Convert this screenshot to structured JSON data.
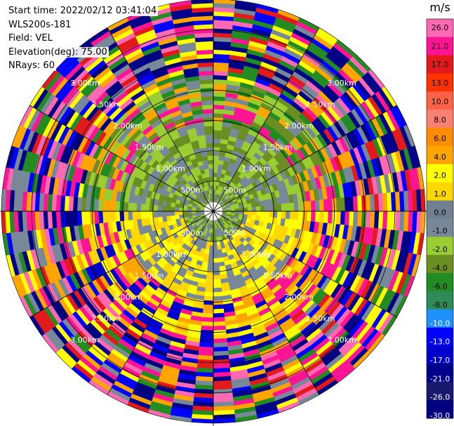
{
  "info": {
    "start_time": "Start time: 2022/02/12 03:41:04",
    "instrument": "WLS200s-181",
    "field": "Field: VEL",
    "elevation": "Elevation(deg): 75.00",
    "nrays": "NRays: 60"
  },
  "chart_data": {
    "type": "heatmap",
    "projection": "polar (PPI scan)",
    "field": "VEL",
    "rays": 60,
    "range_rings": [
      {
        "range_km": 0.5,
        "label": "500m"
      },
      {
        "range_km": 1.0,
        "label": "1.00km"
      },
      {
        "range_km": 1.5,
        "label": "1.50km"
      },
      {
        "range_km": 2.0,
        "label": "2.00km"
      },
      {
        "range_km": 2.5,
        "label": "2.50km"
      },
      {
        "range_km": 3.0,
        "label": "3.00km"
      }
    ],
    "max_range_km": 3.5,
    "colorbar": {
      "unit": "m/s",
      "range": [
        -30.0,
        30.0
      ],
      "tick_labels": [
        "26.0",
        "21.0",
        "17.0",
        "13.0",
        "10.0",
        "8.0",
        "6.0",
        "4.0",
        "2.0",
        "1.0",
        "0.0",
        "-1.0",
        "-2.0",
        "-4.0",
        "-6.0",
        "-8.0",
        "-10.0",
        "-13.0",
        "-17.0",
        "-21.0",
        "-26.0",
        "-30.0"
      ],
      "bins": [
        {
          "from": 26.0,
          "to": 30.0,
          "color": "#ff69b4"
        },
        {
          "from": 21.0,
          "to": 26.0,
          "color": "#ff1493"
        },
        {
          "from": 17.0,
          "to": 21.0,
          "color": "#e31a1c"
        },
        {
          "from": 13.0,
          "to": 17.0,
          "color": "#ff3300"
        },
        {
          "from": 10.0,
          "to": 13.0,
          "color": "#ff6347"
        },
        {
          "from": 8.0,
          "to": 10.0,
          "color": "#fa8072"
        },
        {
          "from": 6.0,
          "to": 8.0,
          "color": "#ff8c00"
        },
        {
          "from": 4.0,
          "to": 6.0,
          "color": "#ffa500"
        },
        {
          "from": 2.0,
          "to": 4.0,
          "color": "#ffff00"
        },
        {
          "from": 1.0,
          "to": 2.0,
          "color": "#ffd700"
        },
        {
          "from": 0.0,
          "to": 1.0,
          "color": "#708090"
        },
        {
          "from": -1.0,
          "to": 0.0,
          "color": "#778899"
        },
        {
          "from": -2.0,
          "to": -1.0,
          "color": "#9acd32"
        },
        {
          "from": -4.0,
          "to": -2.0,
          "color": "#6b8e23"
        },
        {
          "from": -6.0,
          "to": -4.0,
          "color": "#228b22"
        },
        {
          "from": -8.0,
          "to": -6.0,
          "color": "#2e8b57"
        },
        {
          "from": -10.0,
          "to": -8.0,
          "color": "#1e90ff"
        },
        {
          "from": -13.0,
          "to": -10.0,
          "color": "#0000ff"
        },
        {
          "from": -17.0,
          "to": -13.0,
          "color": "#0000cd"
        },
        {
          "from": -21.0,
          "to": -17.0,
          "color": "#00008b"
        },
        {
          "from": -26.0,
          "to": -21.0,
          "color": "#191970"
        },
        {
          "from": -30.0,
          "to": -26.0,
          "color": "#000080"
        }
      ]
    },
    "pattern": [
      {
        "range_km": [
          0.15,
          0.5
        ],
        "dominant_colors": [
          "#778899",
          "#6b8e23",
          "#9acd32"
        ]
      },
      {
        "range_km": [
          0.5,
          1.5
        ],
        "north_half": [
          "#6b8e23",
          "#778899",
          "#9acd32"
        ],
        "south_half": [
          "#ffff00",
          "#ffd700",
          "#778899"
        ]
      },
      {
        "range_km": [
          1.5,
          2.2
        ],
        "north_half": [
          "#6b8e23",
          "#228b22",
          "#9acd32",
          "#778899",
          "#ff1493",
          "#ffa500"
        ],
        "south_half": [
          "#ffff00",
          "#ffd700",
          "#ffa500",
          "#0000cd",
          "#ff1493"
        ]
      },
      {
        "range_km": [
          2.2,
          3.5
        ],
        "mixed": [
          "#ff1493",
          "#ffa500",
          "#e31a1c",
          "#0000ff",
          "#00008b",
          "#ffff00",
          "#228b22",
          "#778899",
          "#ff69b4",
          "#000080"
        ]
      }
    ]
  }
}
